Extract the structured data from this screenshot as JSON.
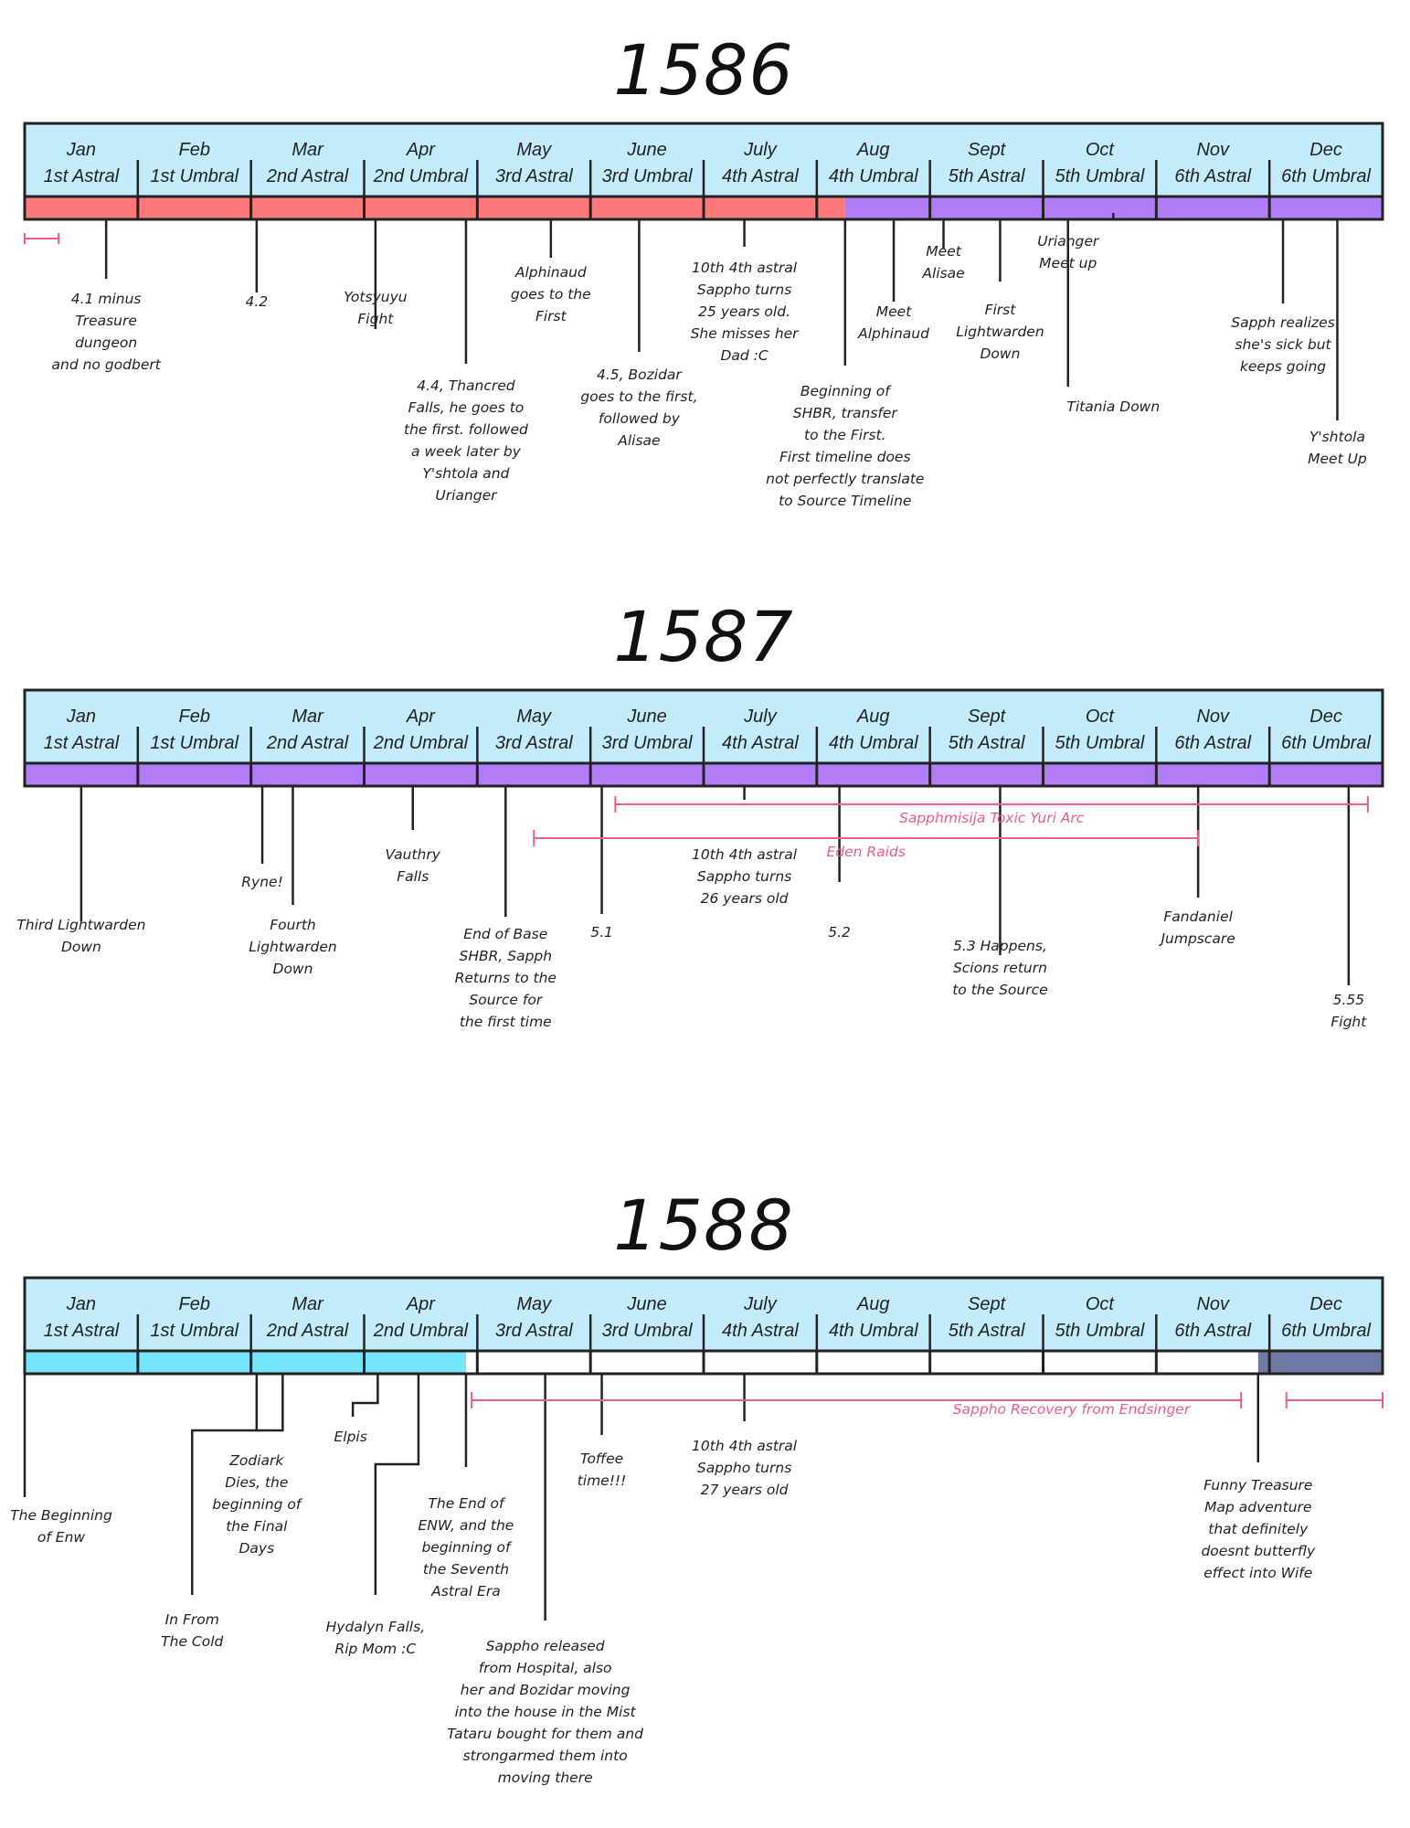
{
  "colors": {
    "header_fill": "#c2ecfc",
    "border": "#222222",
    "astral_red": "#fd7979",
    "umbral_purple": "#b07cf7",
    "era_cyan": "#75e4fd",
    "era_slate": "#6e7aa6",
    "range_pink": "#eb5b8b"
  },
  "timelines": [
    {
      "year": "1586",
      "months": [
        {
          "month": "Jan",
          "era": "1st Astral"
        },
        {
          "month": "Feb",
          "era": "1st Umbral"
        },
        {
          "month": "Mar",
          "era": "2nd Astral"
        },
        {
          "month": "Apr",
          "era": "2nd Umbral"
        },
        {
          "month": "May",
          "era": "3rd Astral"
        },
        {
          "month": "June",
          "era": "3rd Umbral"
        },
        {
          "month": "July",
          "era": "4th Astral"
        },
        {
          "month": "Aug",
          "era": "4th Umbral"
        },
        {
          "month": "Sept",
          "era": "5th Astral"
        },
        {
          "month": "Oct",
          "era": "5th Umbral"
        },
        {
          "month": "Nov",
          "era": "6th Astral"
        },
        {
          "month": "Dec",
          "era": "6th Umbral"
        }
      ],
      "fills": [
        {
          "from_month": 0,
          "to_month": 7.25,
          "color": "#fd7979"
        },
        {
          "from_month": 7.25,
          "to_month": 12,
          "color": "#b07cf7"
        }
      ],
      "events": [
        {
          "month": 0.72,
          "text": [
            "4.1 minus",
            "Treasure",
            "dungeon",
            "and no godbert"
          ]
        },
        {
          "month": 2.05,
          "text": [
            "4.2"
          ]
        },
        {
          "month": 3.1,
          "text": [
            "Yotsyuyu",
            "Fight"
          ]
        },
        {
          "month": 3.9,
          "text": [
            "4.4, Thancred",
            "Falls, he goes to",
            "the first. followed",
            "a week later by",
            "Y'shtola and",
            "Urianger"
          ]
        },
        {
          "month": 4.65,
          "text": [
            "Alphinaud",
            "goes to the",
            "First"
          ]
        },
        {
          "month": 5.43,
          "text": [
            "4.5, Bozidar",
            "goes to the first,",
            "followed by",
            "Alisae"
          ]
        },
        {
          "month": 6.36,
          "text": [
            "10th 4th astral",
            "Sappho turns",
            "25 years old.",
            "She misses her",
            "Dad :C"
          ]
        },
        {
          "month": 7.25,
          "text": [
            "Beginning of",
            "SHBR, transfer",
            "to the First.",
            "First timeline does",
            "not perfectly translate",
            "to Source Timeline"
          ]
        },
        {
          "month": 7.68,
          "text": [
            "Meet",
            "Alphinaud"
          ]
        },
        {
          "month": 8.12,
          "text": [
            "Meet",
            "Alisae"
          ]
        },
        {
          "month": 8.62,
          "text": [
            "First",
            "Lightwarden",
            "Down"
          ]
        },
        {
          "month": 9.22,
          "text": [
            "Urianger",
            "Meet up"
          ]
        },
        {
          "month": 9.62,
          "text": [
            "Titania Down"
          ]
        },
        {
          "month": 11.12,
          "text": [
            "Sapph realizes",
            "she's sick but",
            "keeps going"
          ]
        },
        {
          "month": 11.6,
          "text": [
            "Y'shtola",
            "Meet Up"
          ]
        }
      ],
      "ranges": [
        {
          "from": 0.0,
          "to": 0.3,
          "label": ""
        }
      ]
    },
    {
      "year": "1587",
      "months": [
        {
          "month": "Jan",
          "era": "1st Astral"
        },
        {
          "month": "Feb",
          "era": "1st Umbral"
        },
        {
          "month": "Mar",
          "era": "2nd Astral"
        },
        {
          "month": "Apr",
          "era": "2nd Umbral"
        },
        {
          "month": "May",
          "era": "3rd Astral"
        },
        {
          "month": "June",
          "era": "3rd Umbral"
        },
        {
          "month": "July",
          "era": "4th Astral"
        },
        {
          "month": "Aug",
          "era": "4th Umbral"
        },
        {
          "month": "Sept",
          "era": "5th Astral"
        },
        {
          "month": "Oct",
          "era": "5th Umbral"
        },
        {
          "month": "Nov",
          "era": "6th Astral"
        },
        {
          "month": "Dec",
          "era": "6th Umbral"
        }
      ],
      "fills": [
        {
          "from_month": 0,
          "to_month": 12,
          "color": "#b07cf7"
        }
      ],
      "events": [
        {
          "month": 0.5,
          "text": [
            "Third Lightwarden",
            "Down"
          ]
        },
        {
          "month": 2.1,
          "text": [
            "Ryne!"
          ]
        },
        {
          "month": 2.37,
          "text": [
            "Fourth",
            "Lightwarden",
            "Down"
          ]
        },
        {
          "month": 3.43,
          "text": [
            "Vauthry",
            "Falls"
          ]
        },
        {
          "month": 4.25,
          "text": [
            "End of Base",
            "SHBR, Sapph",
            "Returns to the",
            "Source for",
            "the first time"
          ]
        },
        {
          "month": 5.1,
          "text": [
            "5.1"
          ]
        },
        {
          "month": 6.36,
          "text": [
            "10th 4th astral",
            "Sappho turns",
            "26 years old"
          ]
        },
        {
          "month": 7.2,
          "text": [
            "5.2"
          ]
        },
        {
          "month": 8.62,
          "text": [
            "5.3 Happens,",
            "Scions return",
            "to the Source"
          ]
        },
        {
          "month": 10.37,
          "text": [
            "Fandaniel",
            "Jumpscare"
          ]
        },
        {
          "month": 11.7,
          "text": [
            "5.55",
            "Fight"
          ]
        }
      ],
      "ranges": [
        {
          "from": 5.22,
          "to": 11.87,
          "label": "Sapphmisija Toxic Yuri Arc"
        },
        {
          "from": 4.5,
          "to": 10.37,
          "label": "Eden Raids"
        }
      ]
    },
    {
      "year": "1588",
      "months": [
        {
          "month": "Jan",
          "era": "1st Astral"
        },
        {
          "month": "Feb",
          "era": "1st Umbral"
        },
        {
          "month": "Mar",
          "era": "2nd Astral"
        },
        {
          "month": "Apr",
          "era": "2nd Umbral"
        },
        {
          "month": "May",
          "era": "3rd Astral"
        },
        {
          "month": "June",
          "era": "3rd Umbral"
        },
        {
          "month": "July",
          "era": "4th Astral"
        },
        {
          "month": "Aug",
          "era": "4th Umbral"
        },
        {
          "month": "Sept",
          "era": "5th Astral"
        },
        {
          "month": "Oct",
          "era": "5th Umbral"
        },
        {
          "month": "Nov",
          "era": "6th Astral"
        },
        {
          "month": "Dec",
          "era": "6th Umbral"
        }
      ],
      "fills": [
        {
          "from_month": 0,
          "to_month": 3.9,
          "color": "#75e4fd"
        },
        {
          "from_month": 10.9,
          "to_month": 12,
          "color": "#6e7aa6"
        }
      ],
      "events": [
        {
          "month": 0.0,
          "text": [
            "The Beginning",
            "of Enw"
          ]
        },
        {
          "month": 1.48,
          "text": [
            "In From",
            "The Cold"
          ]
        },
        {
          "month": 2.05,
          "text": [
            "Zodiark",
            "Dies, the",
            "beginning of",
            "the Final",
            "Days"
          ]
        },
        {
          "month": 2.9,
          "text": [
            "Elpis"
          ]
        },
        {
          "month": 3.1,
          "text": [
            "Hydalyn Falls,",
            "Rip Mom :C"
          ]
        },
        {
          "month": 3.9,
          "text": [
            "The End of",
            "ENW, and the",
            "beginning of",
            "the Seventh",
            "Astral Era"
          ]
        },
        {
          "month": 4.6,
          "text": [
            "Sappho released",
            "from Hospital, also",
            "her and Bozidar moving",
            "into the house in the Mist",
            "Tataru bought for them and",
            "strongarmed them into",
            "moving there"
          ]
        },
        {
          "month": 5.1,
          "text": [
            "Toffee",
            "time!!!"
          ]
        },
        {
          "month": 6.36,
          "text": [
            "10th 4th astral",
            "Sappho turns",
            "27 years old"
          ]
        },
        {
          "month": 10.9,
          "text": [
            "Funny Treasure",
            "Map adventure",
            "that definitely",
            "doesnt butterfly",
            "effect into Wife"
          ]
        }
      ],
      "ranges": [
        {
          "from": 3.95,
          "to": 10.75,
          "label": "Sappho Recovery from Endsinger"
        },
        {
          "from": 11.15,
          "to": 12.0,
          "label": ""
        }
      ]
    }
  ]
}
